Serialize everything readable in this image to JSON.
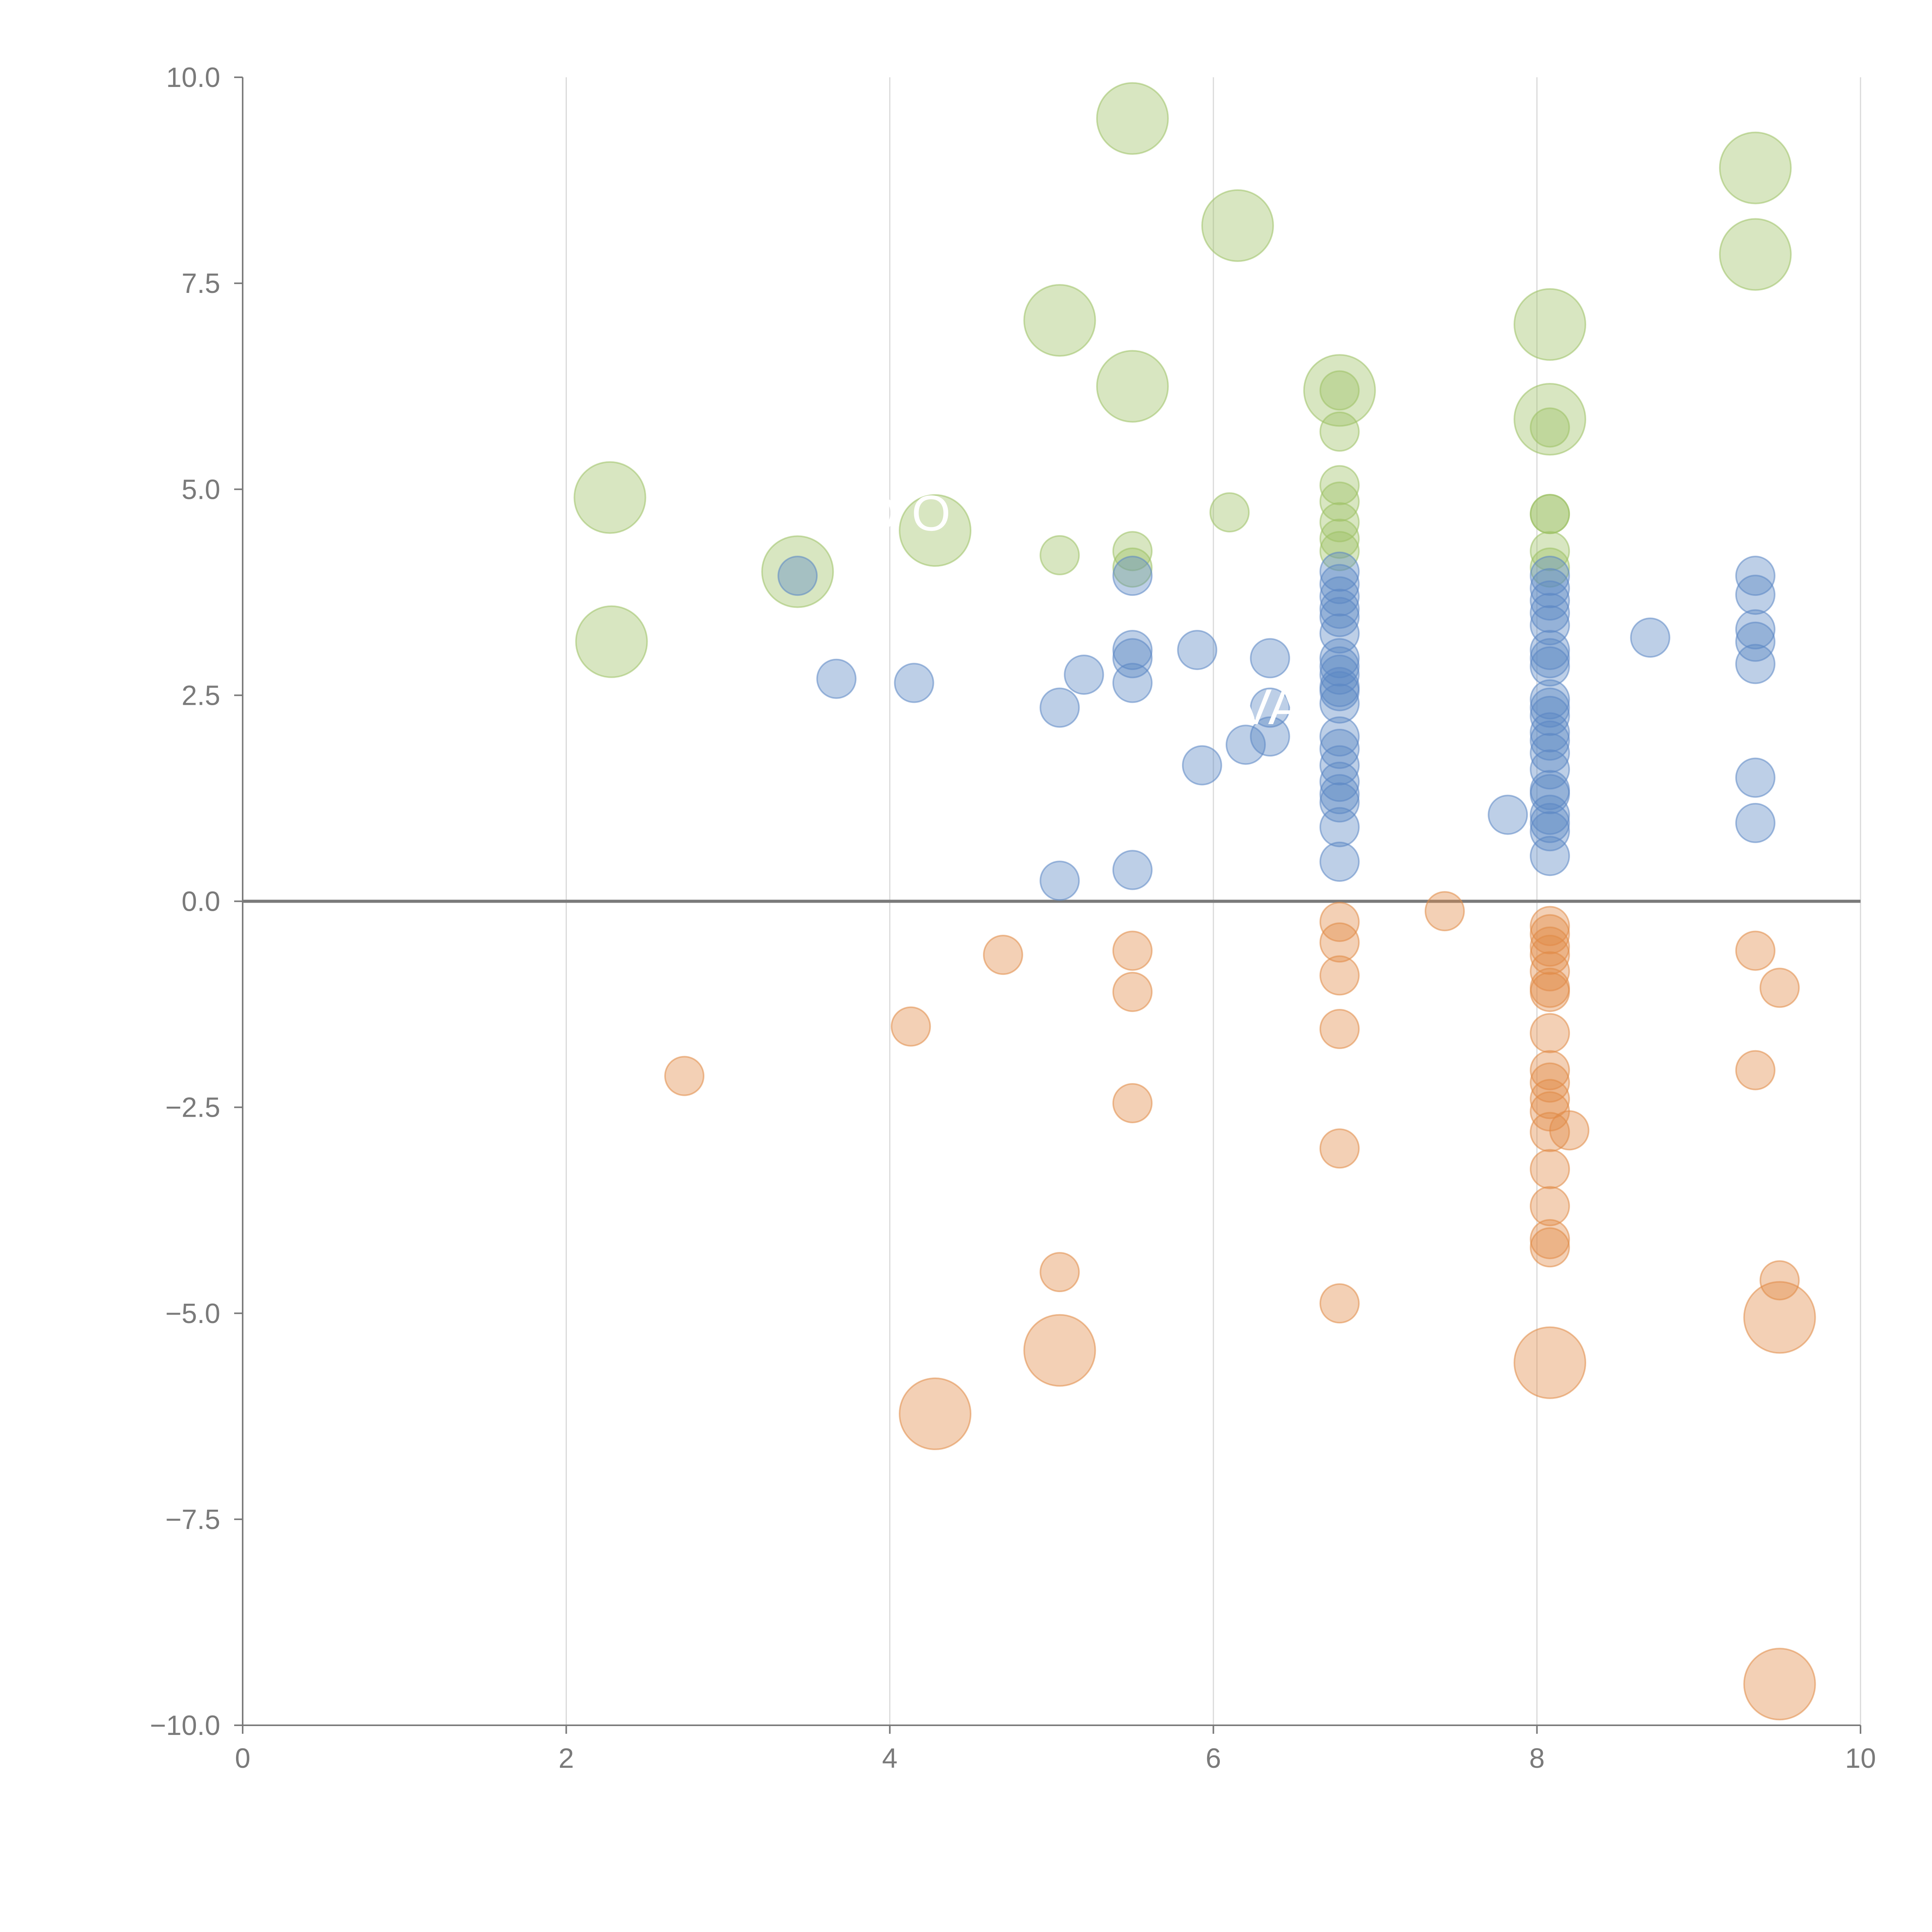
{
  "chart_data": {
    "type": "scatter",
    "title": "",
    "xlabel": "",
    "ylabel": "",
    "xlim": [
      0,
      10
    ],
    "ylim": [
      -10,
      10
    ],
    "grid": "vertical",
    "x_ticks": [
      0,
      2,
      4,
      6,
      8,
      10
    ],
    "x_tick_labels": [
      "0",
      "2",
      "4",
      "6",
      "8",
      "10"
    ],
    "y_ticks": [
      -10,
      -7.5,
      -5,
      -2.5,
      0,
      2.5,
      5,
      7.5,
      10
    ],
    "y_tick_labels": [
      "−10.0",
      "−7.5",
      "−5.0",
      "−2.5",
      "0.0",
      "2.5",
      "5.0",
      "7.5",
      "10.0"
    ],
    "colors": {
      "green": "#9dc164",
      "blue": "#5b86c4",
      "orange": "#e08a45",
      "axis": "#7a7a7a",
      "grid": "#d9d9d9"
    },
    "overlay_labels": [
      {
        "text": "D  O",
        "x": 4.1,
        "y": 4.5
      },
      {
        "text": "VA",
        "x": 6.35,
        "y": 2.15
      }
    ],
    "series": [
      {
        "name": "green",
        "points": [
          [
            5.5,
            9.5,
            2
          ],
          [
            6.15,
            8.2,
            2
          ],
          [
            9.35,
            8.9,
            2
          ],
          [
            9.35,
            7.85,
            2
          ],
          [
            5.05,
            7.05,
            2
          ],
          [
            8.08,
            7.0,
            2
          ],
          [
            5.5,
            6.25,
            2
          ],
          [
            6.78,
            6.2,
            2
          ],
          [
            8.08,
            5.85,
            2
          ],
          [
            2.27,
            4.9,
            2
          ],
          [
            4.28,
            4.5,
            2
          ],
          [
            3.43,
            4.0,
            2
          ],
          [
            2.28,
            3.15,
            2
          ],
          [
            6.78,
            6.2,
            1
          ],
          [
            6.78,
            5.7,
            1
          ],
          [
            8.08,
            5.75,
            1
          ],
          [
            6.1,
            4.72,
            1
          ],
          [
            6.78,
            5.05,
            1
          ],
          [
            6.78,
            4.85,
            1
          ],
          [
            6.78,
            4.6,
            1
          ],
          [
            6.78,
            4.4,
            1
          ],
          [
            6.78,
            4.25,
            1
          ],
          [
            8.08,
            4.7,
            1
          ],
          [
            8.08,
            4.7,
            1
          ],
          [
            8.08,
            4.25,
            1
          ],
          [
            8.08,
            4.05,
            1
          ],
          [
            5.05,
            4.2,
            1
          ],
          [
            5.5,
            4.25,
            1
          ],
          [
            5.5,
            4.05,
            1
          ]
        ]
      },
      {
        "name": "blue",
        "points": [
          [
            3.43,
            3.95,
            1
          ],
          [
            3.67,
            2.7,
            1
          ],
          [
            4.15,
            2.65,
            1
          ],
          [
            5.05,
            2.35,
            1
          ],
          [
            5.2,
            2.75,
            1
          ],
          [
            5.5,
            3.95,
            1
          ],
          [
            5.5,
            3.05,
            1
          ],
          [
            5.5,
            2.95,
            1
          ],
          [
            5.5,
            2.65,
            1
          ],
          [
            5.9,
            3.05,
            1
          ],
          [
            6.35,
            2.95,
            1
          ],
          [
            6.35,
            2.35,
            1
          ],
          [
            6.2,
            1.9,
            1
          ],
          [
            6.35,
            2.0,
            1
          ],
          [
            5.93,
            1.65,
            1
          ],
          [
            5.05,
            0.25,
            1
          ],
          [
            5.5,
            0.38,
            1
          ],
          [
            7.82,
            1.05,
            1
          ],
          [
            8.7,
            3.2,
            1
          ],
          [
            9.35,
            3.95,
            1
          ],
          [
            9.35,
            3.72,
            1
          ],
          [
            9.35,
            3.3,
            1
          ],
          [
            9.35,
            3.15,
            1
          ],
          [
            9.35,
            2.88,
            1
          ],
          [
            9.35,
            1.5,
            1
          ],
          [
            9.35,
            0.95,
            1
          ],
          [
            6.78,
            4.0,
            1
          ],
          [
            6.78,
            3.85,
            1
          ],
          [
            6.78,
            3.7,
            1
          ],
          [
            6.78,
            3.55,
            1
          ],
          [
            6.78,
            3.45,
            1
          ],
          [
            6.78,
            3.25,
            1
          ],
          [
            6.78,
            2.95,
            1
          ],
          [
            6.78,
            2.85,
            1
          ],
          [
            6.78,
            2.75,
            1
          ],
          [
            6.78,
            2.6,
            1
          ],
          [
            6.78,
            2.55,
            1
          ],
          [
            6.78,
            2.4,
            1
          ],
          [
            6.78,
            2.0,
            1
          ],
          [
            6.78,
            1.85,
            1
          ],
          [
            6.78,
            1.65,
            1
          ],
          [
            6.78,
            1.45,
            1
          ],
          [
            6.78,
            1.3,
            1
          ],
          [
            6.78,
            1.2,
            1
          ],
          [
            6.78,
            0.9,
            1
          ],
          [
            6.78,
            0.48,
            1
          ],
          [
            8.08,
            3.95,
            1
          ],
          [
            8.08,
            3.8,
            1
          ],
          [
            8.08,
            3.65,
            1
          ],
          [
            8.08,
            3.5,
            1
          ],
          [
            8.08,
            3.35,
            1
          ],
          [
            8.08,
            3.05,
            1
          ],
          [
            8.08,
            2.95,
            1
          ],
          [
            8.08,
            2.85,
            1
          ],
          [
            8.08,
            2.45,
            1
          ],
          [
            8.08,
            2.35,
            1
          ],
          [
            8.08,
            2.25,
            1
          ],
          [
            8.08,
            2.05,
            1
          ],
          [
            8.08,
            1.95,
            1
          ],
          [
            8.08,
            1.8,
            1
          ],
          [
            8.08,
            1.6,
            1
          ],
          [
            8.08,
            1.35,
            1
          ],
          [
            8.08,
            1.3,
            1
          ],
          [
            8.08,
            1.05,
            1
          ],
          [
            8.08,
            0.95,
            1
          ],
          [
            8.08,
            0.85,
            1
          ],
          [
            8.08,
            0.55,
            1
          ]
        ]
      },
      {
        "name": "orange",
        "points": [
          [
            2.73,
            -2.12,
            1
          ],
          [
            4.13,
            -1.52,
            1
          ],
          [
            4.7,
            -0.65,
            1
          ],
          [
            5.05,
            -4.5,
            1
          ],
          [
            5.5,
            -0.6,
            1
          ],
          [
            5.5,
            -1.1,
            1
          ],
          [
            5.5,
            -2.45,
            1
          ],
          [
            7.43,
            -0.12,
            1
          ],
          [
            8.2,
            -2.78,
            1
          ],
          [
            9.35,
            -0.6,
            1
          ],
          [
            9.5,
            -1.05,
            1
          ],
          [
            9.35,
            -2.05,
            1
          ],
          [
            9.5,
            -4.6,
            1
          ],
          [
            6.78,
            -0.25,
            1
          ],
          [
            6.78,
            -0.5,
            1
          ],
          [
            6.78,
            -0.9,
            1
          ],
          [
            6.78,
            -1.55,
            1
          ],
          [
            6.78,
            -3.0,
            1
          ],
          [
            6.78,
            -4.88,
            1
          ],
          [
            8.08,
            -0.3,
            1
          ],
          [
            8.08,
            -0.4,
            1
          ],
          [
            8.08,
            -0.55,
            1
          ],
          [
            8.08,
            -0.65,
            1
          ],
          [
            8.08,
            -0.85,
            1
          ],
          [
            8.08,
            -1.05,
            1
          ],
          [
            8.08,
            -1.1,
            1
          ],
          [
            8.08,
            -1.6,
            1
          ],
          [
            8.08,
            -2.05,
            1
          ],
          [
            8.08,
            -2.2,
            1
          ],
          [
            8.08,
            -2.4,
            1
          ],
          [
            8.08,
            -2.55,
            1
          ],
          [
            8.08,
            -2.8,
            1
          ],
          [
            8.08,
            -3.25,
            1
          ],
          [
            8.08,
            -3.7,
            1
          ],
          [
            8.08,
            -4.1,
            1
          ],
          [
            8.08,
            -4.2,
            1
          ],
          [
            4.28,
            -6.22,
            2
          ],
          [
            5.05,
            -5.45,
            2
          ],
          [
            8.08,
            -5.6,
            2
          ],
          [
            9.5,
            -5.05,
            2
          ],
          [
            9.5,
            -9.5,
            2
          ]
        ]
      }
    ]
  }
}
